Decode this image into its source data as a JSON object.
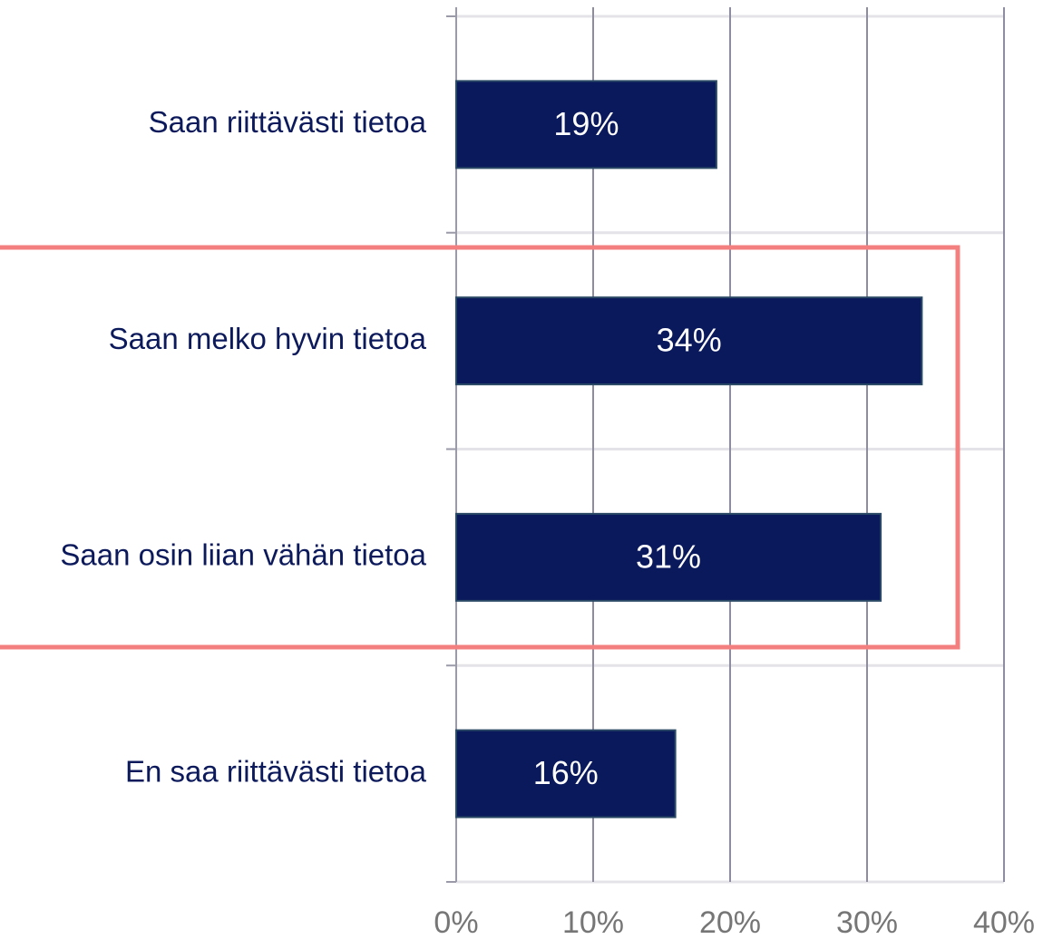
{
  "chart_data": {
    "type": "bar",
    "orientation": "horizontal",
    "categories": [
      "Saan riittävästi tietoa",
      "Saan melko hyvin tietoa",
      "Saan osin liian vähän tietoa",
      "En saa riittävästi tietoa"
    ],
    "values": [
      19,
      34,
      31,
      16
    ],
    "value_labels": [
      "19%",
      "34%",
      "31%",
      "16%"
    ],
    "color": "#0a185c",
    "xlim": [
      0,
      40
    ],
    "xticks": [
      {
        "value": 0,
        "label": "0%"
      },
      {
        "value": 10,
        "label": "10%"
      },
      {
        "value": 20,
        "label": "20%"
      },
      {
        "value": 30,
        "label": "30%"
      },
      {
        "value": 40,
        "label": "40%"
      }
    ],
    "grid": true
  }
}
